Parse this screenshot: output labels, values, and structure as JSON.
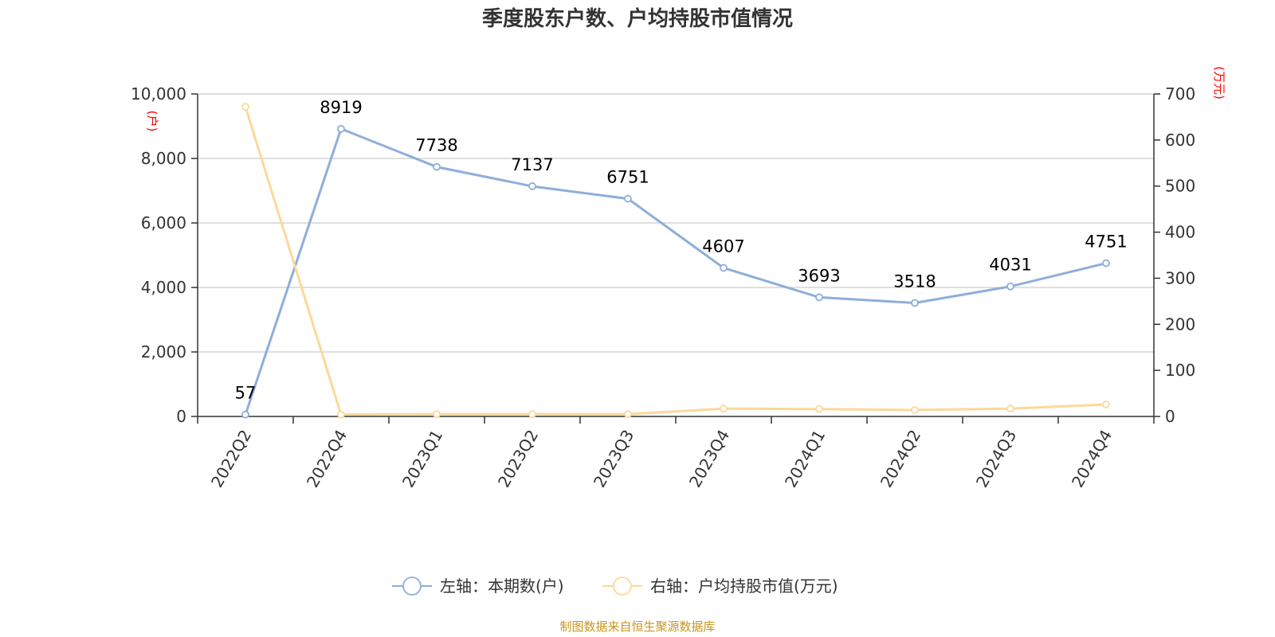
{
  "title": "季度股东户数、户均持股市值情况",
  "source": "制图数据来自恒生聚源数据库",
  "chart_data": {
    "type": "line",
    "categories": [
      "2022Q2",
      "2022Q4",
      "2023Q1",
      "2023Q2",
      "2023Q3",
      "2023Q4",
      "2024Q1",
      "2024Q2",
      "2024Q3",
      "2024Q4"
    ],
    "left_axis": {
      "unit": "(户)",
      "ylim": [
        0,
        10000
      ],
      "ticks": [
        0,
        2000,
        4000,
        6000,
        8000,
        10000
      ],
      "tick_labels": [
        "0",
        "2,000",
        "4,000",
        "6,000",
        "8,000",
        "10,000"
      ]
    },
    "right_axis": {
      "unit": "(万元)",
      "ylim": [
        0,
        700
      ],
      "ticks": [
        0,
        100,
        200,
        300,
        400,
        500,
        600,
        700
      ],
      "tick_labels": [
        "0",
        "100",
        "200",
        "300",
        "400",
        "500",
        "600",
        "700"
      ]
    },
    "series": [
      {
        "name": "左轴：本期数(户)",
        "axis": "left",
        "color": "#8eaedb",
        "values": [
          57,
          8919,
          7738,
          7137,
          6751,
          4607,
          3693,
          3518,
          4031,
          4751
        ],
        "show_labels": true
      },
      {
        "name": "右轴：户均持股市值(万元)",
        "axis": "right",
        "color": "#fdd89a",
        "values": [
          672,
          4,
          5,
          5,
          5,
          17,
          16,
          14,
          17,
          26
        ],
        "show_labels": false
      }
    ],
    "grid": true,
    "legend_position": "bottom"
  }
}
